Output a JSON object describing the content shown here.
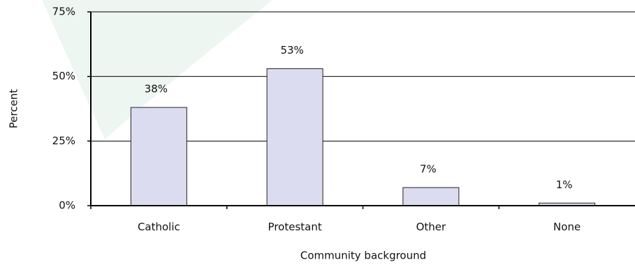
{
  "chart_data": {
    "type": "bar",
    "x_label": "Community background",
    "y_label": "Percent",
    "categories": [
      "Catholic",
      "Protestant",
      "Other",
      "None"
    ],
    "values": [
      38,
      53,
      7,
      1
    ],
    "value_labels": [
      "38%",
      "53%",
      "7%",
      "1%"
    ],
    "color": "#dcdcf0",
    "ylim": [
      0,
      75
    ],
    "yticks": [
      {
        "value": 0,
        "label": "0%"
      },
      {
        "value": 25,
        "label": "25%"
      },
      {
        "value": 50,
        "label": "50%"
      },
      {
        "value": 75,
        "label": "75%"
      }
    ],
    "grid": true
  }
}
